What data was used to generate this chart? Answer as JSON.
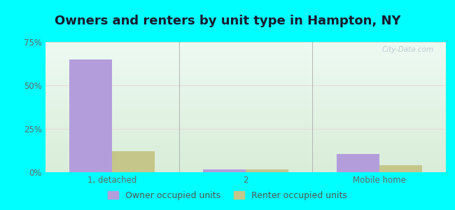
{
  "title": "Owners and renters by unit type in Hampton, NY",
  "categories": [
    "1, detached",
    "2",
    "Mobile home"
  ],
  "owner_values": [
    65.0,
    1.8,
    10.5
  ],
  "renter_values": [
    12.0,
    1.5,
    4.0
  ],
  "owner_color": "#b39ddb",
  "renter_color": "#c5c68a",
  "outer_bg": "#00ffff",
  "ylim": [
    0,
    75
  ],
  "yticks": [
    0,
    25,
    50,
    75
  ],
  "yticklabels": [
    "0%",
    "25%",
    "50%",
    "75%"
  ],
  "bar_width": 0.32,
  "legend_labels": [
    "Owner occupied units",
    "Renter occupied units"
  ],
  "watermark": "City-Data.com",
  "title_fontsize": 13,
  "tick_fontsize": 8.5,
  "legend_fontsize": 9
}
